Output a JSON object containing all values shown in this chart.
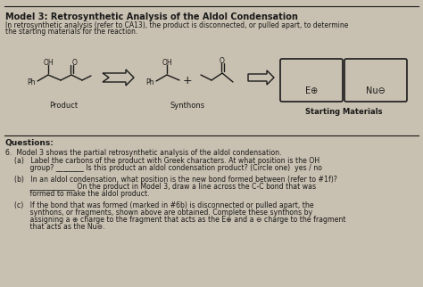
{
  "title": "Model 3: Retrosynthetic Analysis of the Aldol Condensation",
  "subtitle_line1": "In retrosynthetic analysis (refer to CA13), the product is disconnected, or pulled apart, to determine",
  "subtitle_line2": "the starting materials for the reaction.",
  "bg_color": "#c8c0b0",
  "text_color": "#1a1a1a",
  "questions_header": "Questions:",
  "q6_intro": "6.  Model 3 shows the partial retrosynthetic analysis of the aldol condensation.",
  "q6a_1": "(a)   Label the carbons of the product with Greek characters. At what position is the OH",
  "q6a_2": "       group? ________ Is this product an aldol condensation product? (Circle one)  yes / no",
  "q6b_1": "(b)   In an aldol condensation, what position is the new bond formed between (refer to #1f)?",
  "q6b_2": "       _____________ On the product in Model 3, draw a line across the C-C bond that was",
  "q6b_3": "       formed to make the aldol product.",
  "q6c_1": "(c)   If the bond that was formed (marked in #6b) is disconnected or pulled apart, the",
  "q6c_2": "       synthons, or fragments, shown above are obtained. Complete these synthons by",
  "q6c_3": "       assigning a ⊕ charge to the fragment that acts as the E⊕ and a ⊖ charge to the fragment",
  "q6c_4": "       that acts as the Nu⊖.",
  "label_product": "Product",
  "label_synthons": "Synthons",
  "label_starting": "Starting Materials",
  "label_E": "E⊕",
  "label_Nu": "Nu⊖"
}
